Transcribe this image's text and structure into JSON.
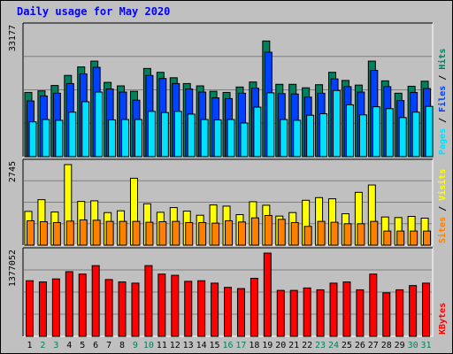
{
  "title": "Daily usage for May 2020",
  "colors": {
    "hits": "#00805c",
    "files": "#0040ff",
    "pages": "#00e0ff",
    "visits": "#ffff00",
    "sites": "#ff8000",
    "kbytes": "#ff0000",
    "weekend_label": "#00805c",
    "weekday_label": "#000000",
    "panel_bg": "#c0c0c0"
  },
  "chart_data": [
    {
      "type": "bar",
      "panel": "top",
      "ymax": 33177,
      "ymax_label": "33177",
      "legend": [
        {
          "name": "Pages",
          "key": "pages"
        },
        {
          "name": "Files",
          "key": "files"
        },
        {
          "name": "Hits",
          "key": "hits"
        }
      ],
      "legend_separator": " / ",
      "categories": [
        "1",
        "2",
        "3",
        "4",
        "5",
        "6",
        "7",
        "8",
        "9",
        "10",
        "11",
        "12",
        "13",
        "14",
        "15",
        "16",
        "17",
        "18",
        "19",
        "20",
        "21",
        "22",
        "23",
        "24",
        "25",
        "26",
        "27",
        "28",
        "29",
        "30",
        "31"
      ],
      "weekend_days": [
        "2",
        "3",
        "9",
        "10",
        "16",
        "17",
        "23",
        "24",
        "30",
        "31"
      ],
      "series": [
        {
          "name": "Hits",
          "key": "hits",
          "values": [
            16600,
            17000,
            18400,
            21000,
            23200,
            24700,
            19200,
            18300,
            16900,
            22800,
            21800,
            20400,
            18900,
            18300,
            16900,
            16600,
            18000,
            19300,
            29900,
            18700,
            18700,
            17800,
            18600,
            21800,
            19700,
            18500,
            24700,
            19600,
            16400,
            18200,
            19500
          ]
        },
        {
          "name": "Files",
          "key": "files",
          "values": [
            14400,
            15700,
            16400,
            18900,
            21400,
            23100,
            17500,
            16700,
            14600,
            21000,
            20200,
            18900,
            17500,
            16700,
            15200,
            15000,
            16400,
            17700,
            27000,
            16300,
            16200,
            15400,
            16400,
            20100,
            18100,
            16700,
            22300,
            18100,
            14500,
            16600,
            17600
          ]
        },
        {
          "name": "Pages",
          "key": "pages",
          "values": [
            9000,
            9600,
            9400,
            11500,
            14200,
            16700,
            9500,
            9600,
            9600,
            11700,
            11400,
            11700,
            11000,
            9600,
            9500,
            9600,
            8700,
            12800,
            16500,
            9600,
            9400,
            10700,
            11100,
            17100,
            13400,
            10800,
            12900,
            12400,
            10100,
            11500,
            13000
          ]
        }
      ]
    },
    {
      "type": "bar",
      "panel": "middle",
      "ymax": 2745,
      "ymax_label": "2745",
      "legend": [
        {
          "name": "Sites",
          "key": "sites"
        },
        {
          "name": "Visits",
          "key": "visits"
        }
      ],
      "legend_separator": " / ",
      "series": [
        {
          "name": "Visits",
          "key": "visits",
          "values": [
            1150,
            1550,
            1130,
            2745,
            1490,
            1510,
            1110,
            1170,
            2280,
            1410,
            1120,
            1280,
            1160,
            1020,
            1370,
            1330,
            1040,
            1480,
            1360,
            990,
            1110,
            1530,
            1620,
            1580,
            1070,
            1800,
            2050,
            960,
            940,
            980,
            920
          ]
        },
        {
          "name": "Sites",
          "key": "sites",
          "values": [
            830,
            800,
            770,
            820,
            860,
            850,
            810,
            810,
            810,
            780,
            800,
            810,
            770,
            770,
            750,
            830,
            790,
            930,
            1010,
            880,
            770,
            640,
            810,
            780,
            730,
            730,
            810,
            480,
            480,
            480,
            480
          ]
        }
      ]
    },
    {
      "type": "bar",
      "panel": "bottom",
      "ymax": 1377052,
      "ymax_label": "1377052",
      "legend": [
        {
          "name": "KBytes",
          "key": "kbytes"
        }
      ],
      "legend_separator": "",
      "series": [
        {
          "name": "KBytes",
          "key": "kbytes",
          "values": [
            920000,
            900000,
            950000,
            1070000,
            1030000,
            1170000,
            940000,
            900000,
            880000,
            1170000,
            1030000,
            1010000,
            910000,
            920000,
            880000,
            810000,
            790000,
            960000,
            1377052,
            760000,
            760000,
            800000,
            770000,
            880000,
            900000,
            770000,
            1030000,
            720000,
            770000,
            840000,
            880000
          ]
        }
      ]
    }
  ]
}
